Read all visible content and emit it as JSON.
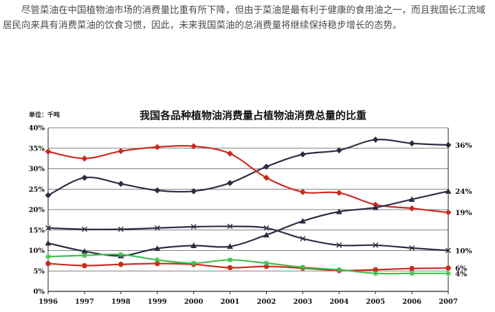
{
  "paragraph": "尽管菜油在中国植物油市场的消费量比重有所下降，但由于菜油是最有利于健康的食用油之一，而且我国长江流域居民向来具有消费菜油的饮食习惯，因此，未来我国菜油的总消费量将继续保持稳步增长的态势。",
  "chart_data": {
    "type": "line",
    "title": "我国各品种植物油消费量占植物油消费总量的比重",
    "unit_label": "单位：千吨",
    "x": [
      "1996",
      "1997",
      "1998",
      "1999",
      "2000",
      "2001",
      "2002",
      "2003",
      "2004",
      "2005",
      "2006",
      "2007"
    ],
    "ylim": [
      0,
      40
    ],
    "yticks": [
      "0%",
      "5%",
      "10%",
      "15%",
      "20%",
      "25%",
      "30%",
      "35%",
      "40%"
    ],
    "grid": true,
    "legend": "none",
    "series": [
      {
        "color": "#2b2d42",
        "marker": "diamond",
        "end_label": "36%",
        "values": [
          23.5,
          27.8,
          26.3,
          24.7,
          24.5,
          26.5,
          30.5,
          33.5,
          34.5,
          37.1,
          36.2,
          35.8
        ]
      },
      {
        "color": "#cc2a1e",
        "marker": "diamond",
        "end_label": "19%",
        "values": [
          34.2,
          32.5,
          34.3,
          35.3,
          35.5,
          33.7,
          27.8,
          24.3,
          24.1,
          21.2,
          20.3,
          19.3
        ]
      },
      {
        "color": "#2b2d42",
        "marker": "triangle",
        "end_label": "24%",
        "values": [
          11.8,
          9.8,
          8.7,
          10.5,
          11.2,
          11.0,
          13.8,
          17.2,
          19.5,
          20.5,
          22.5,
          24.5
        ]
      },
      {
        "color": "#2b2d42",
        "marker": "x",
        "end_label": "10%",
        "values": [
          15.5,
          15.2,
          15.2,
          15.5,
          15.8,
          15.9,
          15.5,
          12.9,
          11.3,
          11.3,
          10.6,
          10.0
        ]
      },
      {
        "color": "#cc2a1e",
        "marker": "circle",
        "end_label": "6%",
        "values": [
          6.8,
          6.3,
          6.6,
          6.8,
          6.6,
          5.8,
          6.1,
          5.7,
          5.1,
          5.3,
          5.6,
          5.7
        ]
      },
      {
        "color": "#3cc04a",
        "marker": "star",
        "end_label": "4%",
        "values": [
          8.5,
          8.8,
          9.0,
          7.7,
          6.9,
          7.7,
          6.9,
          5.9,
          5.3,
          4.4,
          4.4,
          4.4
        ]
      }
    ]
  }
}
